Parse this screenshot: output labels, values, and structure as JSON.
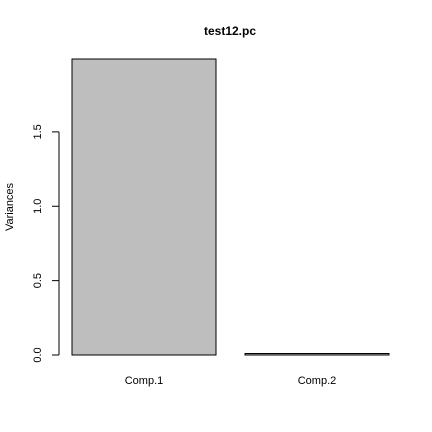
{
  "chart_data": {
    "type": "bar",
    "title": "test12.pc",
    "xlabel": "",
    "ylabel": "Variances",
    "categories": [
      "Comp.1",
      "Comp.2"
    ],
    "values": [
      1.99,
      0.01
    ],
    "ylim": [
      0,
      1.99
    ],
    "yticks": [
      0.0,
      0.5,
      1.0,
      1.5
    ],
    "ytick_labels": [
      "0.0",
      "0.5",
      "1.0",
      "1.5"
    ],
    "grid": false,
    "legend": "none",
    "colors": {
      "bar_fill": "#bebebe",
      "bar_stroke": "#000000",
      "axis": "#000000",
      "text": "#000000",
      "background": "#ffffff"
    }
  }
}
